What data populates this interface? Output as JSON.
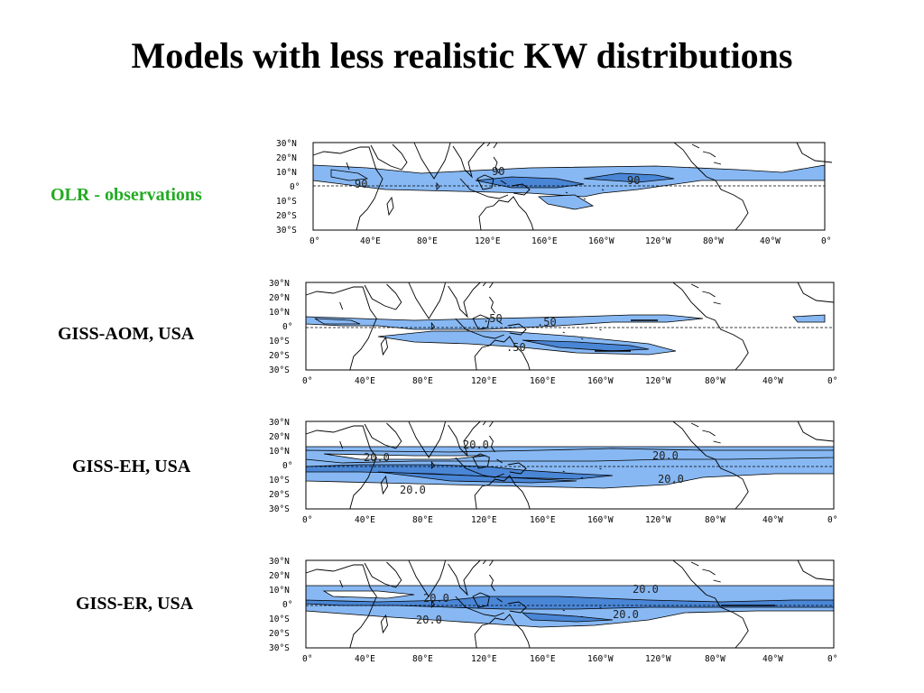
{
  "slide": {
    "title": "Models with less realistic KW distributions"
  },
  "colors": {
    "light_fill": "#87b8f3",
    "dark_fill": "#4a86d6",
    "obs_label": "#22aa22",
    "coast": "#000000"
  },
  "axes": {
    "lat_ticks": [
      "30°N",
      "20°N",
      "10°N",
      "0°",
      "10°S",
      "20°S",
      "30°S"
    ],
    "lon_ticks": [
      "0°",
      "40°E",
      "80°E",
      "120°E",
      "160°E",
      "160°W",
      "120°W",
      "80°W",
      "40°W",
      "0°"
    ]
  },
  "panels": [
    {
      "id": "obs",
      "label": "OLR - observations",
      "label_color": "#22aa22",
      "contour_labels": [
        "90",
        "90",
        "90"
      ]
    },
    {
      "id": "giss-aom",
      "label": "GISS-AOM, USA",
      "label_color": "#000000",
      "contour_labels": [
        ".50",
        ".50",
        ".50"
      ]
    },
    {
      "id": "giss-eh",
      "label": "GISS-EH, USA",
      "label_color": "#000000",
      "contour_labels": [
        "20.0",
        "20.0",
        "20.0",
        "20.0",
        "20.0"
      ]
    },
    {
      "id": "giss-er",
      "label": "GISS-ER, USA",
      "label_color": "#000000",
      "contour_labels": [
        "20.0",
        "20.0",
        "20.0",
        "20.0"
      ]
    }
  ]
}
